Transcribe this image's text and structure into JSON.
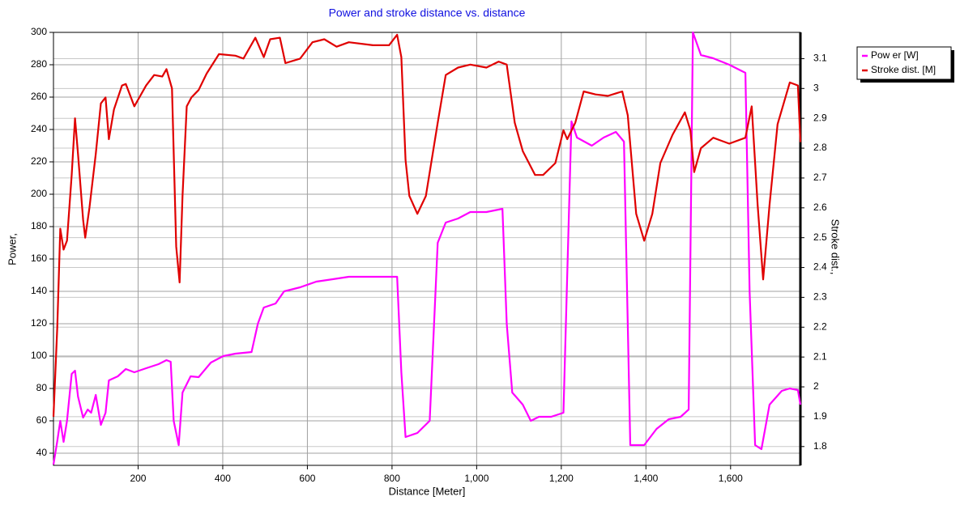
{
  "chart_data": {
    "type": "line",
    "title": "Power and stroke distance vs. distance",
    "xlabel": "Distance [Meter]",
    "ylabel": "Power,",
    "y2label": "Stroke dist.,",
    "xlim": [
      0,
      1765
    ],
    "ylim": [
      32.5,
      300
    ],
    "y2lim": [
      1.737,
      3.188
    ],
    "xticks": [
      200,
      400,
      600,
      800,
      {
        "value": 1000,
        "label": "1,000"
      },
      {
        "value": 1200,
        "label": "1,200"
      },
      {
        "value": 1400,
        "label": "1,400"
      },
      {
        "value": 1600,
        "label": "1,600"
      }
    ],
    "yticks": [
      40,
      60,
      80,
      100,
      120,
      140,
      160,
      180,
      200,
      220,
      240,
      260,
      280,
      300
    ],
    "y2ticks": [
      1.8,
      1.9,
      2,
      2.1,
      2.2,
      2.3,
      2.4,
      2.5,
      2.6,
      2.7,
      2.8,
      2.9,
      3,
      3.1
    ],
    "grid": true,
    "legend": "top-right",
    "series": [
      {
        "name": "Pow er [W]",
        "color": "#ff00ff",
        "axis": "y",
        "x": [
          0,
          9,
          16,
          24,
          32,
          43,
          51,
          58,
          70,
          81,
          89,
          100,
          112,
          123,
          131,
          152,
          171,
          191,
          219,
          248,
          267,
          277,
          284,
          296,
          305,
          324,
          343,
          372,
          401,
          430,
          468,
          483,
          497,
          525,
          545,
          583,
          621,
          660,
          698,
          755,
          812,
          822,
          832,
          860,
          889,
          908,
          927,
          956,
          985,
          1023,
          1061,
          1071,
          1084,
          1109,
          1128,
          1147,
          1176,
          1205,
          1224,
          1237,
          1272,
          1300,
          1329,
          1348,
          1363,
          1396,
          1425,
          1454,
          1482,
          1501,
          1511,
          1530,
          1559,
          1597,
          1635,
          1645,
          1658,
          1673,
          1692,
          1721,
          1740,
          1759,
          1765
        ],
        "values": [
          33,
          47.5,
          60,
          47,
          60,
          89,
          91,
          75,
          62,
          67,
          65,
          76,
          57.5,
          65,
          85,
          87.5,
          92,
          90,
          92.5,
          95,
          97.5,
          96.5,
          60,
          45,
          77.5,
          87.5,
          87,
          96,
          100,
          101.5,
          102.5,
          120,
          130,
          132.5,
          140,
          142.5,
          146,
          147.5,
          149,
          149,
          149,
          90,
          50,
          52.5,
          60,
          170,
          182.5,
          185,
          189,
          189,
          191,
          120,
          77.5,
          70,
          60,
          62.5,
          62.5,
          65,
          245,
          235,
          230,
          235,
          238.5,
          232.5,
          45,
          45,
          55,
          61,
          62.5,
          67,
          300,
          286,
          284,
          280,
          275,
          140,
          45,
          42.5,
          70,
          78.5,
          80,
          79,
          70
        ]
      },
      {
        "name": "Stroke dist. [M]",
        "color": "#e00000",
        "axis": "y2",
        "x": [
          0,
          9,
          16,
          24,
          32,
          43,
          51,
          58,
          70,
          75,
          85,
          100,
          112,
          123,
          131,
          143,
          162,
          171,
          191,
          219,
          238,
          257,
          267,
          280,
          290,
          298,
          305,
          315,
          326,
          343,
          362,
          391,
          430,
          449,
          477,
          497,
          512,
          535,
          548,
          583,
          612,
          640,
          669,
          698,
          755,
          793,
          812,
          822,
          832,
          841,
          860,
          880,
          908,
          927,
          956,
          985,
          1023,
          1052,
          1071,
          1090,
          1109,
          1138,
          1157,
          1186,
          1205,
          1214,
          1233,
          1253,
          1281,
          1310,
          1344,
          1357,
          1377,
          1396,
          1415,
          1434,
          1463,
          1492,
          1505,
          1514,
          1530,
          1559,
          1597,
          1635,
          1650,
          1664,
          1677,
          1692,
          1711,
          1740,
          1759,
          1765
        ],
        "values": [
          1.9,
          2.2,
          2.53,
          2.46,
          2.49,
          2.71,
          2.9,
          2.78,
          2.56,
          2.5,
          2.6,
          2.78,
          2.95,
          2.97,
          2.83,
          2.93,
          3.01,
          3.015,
          2.94,
          3.01,
          3.045,
          3.04,
          3.065,
          3.0,
          2.47,
          2.35,
          2.64,
          2.94,
          2.97,
          2.995,
          3.05,
          3.115,
          3.11,
          3.1,
          3.17,
          3.105,
          3.165,
          3.17,
          3.085,
          3.1,
          3.155,
          3.165,
          3.14,
          3.155,
          3.145,
          3.145,
          3.18,
          3.105,
          2.76,
          2.64,
          2.58,
          2.64,
          2.885,
          3.045,
          3.07,
          3.08,
          3.07,
          3.09,
          3.08,
          2.885,
          2.79,
          2.71,
          2.71,
          2.75,
          2.86,
          2.83,
          2.885,
          2.99,
          2.98,
          2.975,
          2.99,
          2.91,
          2.58,
          2.49,
          2.58,
          2.75,
          2.845,
          2.92,
          2.86,
          2.72,
          2.8,
          2.835,
          2.815,
          2.835,
          2.94,
          2.61,
          2.36,
          2.61,
          2.88,
          3.02,
          3.01,
          2.82
        ]
      }
    ]
  }
}
